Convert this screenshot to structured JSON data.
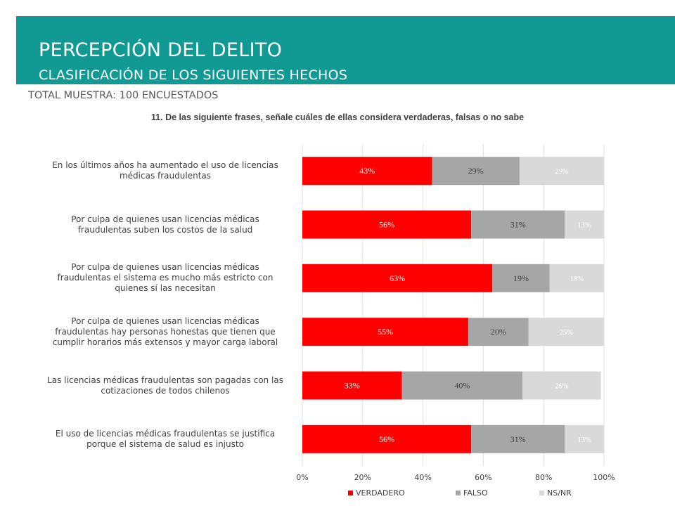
{
  "header": {
    "title": "PERCEPCIÓN DEL DELITO",
    "subtitle": "CLASIFICACIÓN DE LOS SIGUIENTES HECHOS",
    "banner_color": "#119a93"
  },
  "sample_text": "TOTAL MUESTRA: 100 ENCUESTADOS",
  "question": "11. De las siguiente frases, señale cuáles de ellas considera verdaderas, falsas o no sabe",
  "chart_data": {
    "type": "bar",
    "orientation": "horizontal",
    "stacked": true,
    "categories": [
      "En los últimos años ha aumentado el uso de licencias médicas fraudulentas",
      "Por culpa de quienes usan licencias médicas fraudulentas suben los costos de la salud",
      "Por culpa de quienes usan licencias médicas fraudulentas el sistema es mucho más estricto con quienes sí las necesitan",
      "Por culpa de quienes usan licencias médicas fraudulentas hay personas honestas que tienen que cumplir horarios más extensos y mayor carga laboral",
      "Las licencias médicas fraudulentas son pagadas con las cotizaciones de todos chilenos",
      "El uso de licencias médicas fraudulentas se justifica porque el sistema de salud es injusto"
    ],
    "category_lines": [
      [
        "En los últimos años ha aumentado el uso de licencias",
        "médicas fraudulentas"
      ],
      [
        "Por culpa de quienes usan licencias médicas",
        "fraudulentas suben los costos de la salud"
      ],
      [
        "Por culpa de quienes usan licencias médicas",
        "fraudulentas el sistema es mucho más estricto con",
        "quienes sí las necesitan"
      ],
      [
        "Por culpa de quienes usan licencias médicas",
        "fraudulentas hay personas honestas que tienen que",
        "cumplir horarios más extensos y mayor carga laboral"
      ],
      [
        "Las licencias médicas fraudulentas son pagadas con las",
        "cotizaciones de todos chilenos"
      ],
      [
        "El uso de licencias médicas fraudulentas se justifica",
        "porque el sistema de salud es injusto"
      ]
    ],
    "series": [
      {
        "name": "VERDADERO",
        "color": "#ff0000",
        "values": [
          43,
          56,
          63,
          55,
          33,
          56
        ]
      },
      {
        "name": "FALSO",
        "color": "#a6a6a6",
        "values": [
          29,
          31,
          19,
          20,
          40,
          31
        ]
      },
      {
        "name": "NS/NR",
        "color": "#d9d9d9",
        "values": [
          29,
          13,
          18,
          25,
          26,
          13
        ]
      }
    ],
    "value_suffix": "%",
    "xlim": [
      0,
      100
    ],
    "xticks": [
      "0%",
      "20%",
      "40%",
      "60%",
      "80%",
      "100%"
    ],
    "grid": "vertical",
    "legend_position": "bottom"
  }
}
